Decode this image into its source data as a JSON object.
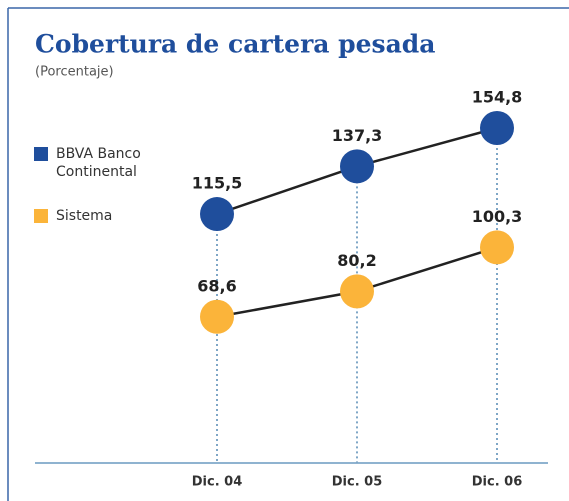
{
  "chart_data": {
    "type": "line",
    "title": "Cobertura de cartera pesada",
    "subtitle": "(Porcentaje)",
    "categories": [
      "Dic. 04",
      "Dic. 05",
      "Dic. 06"
    ],
    "series": [
      {
        "name": "BBVA Banco Continental",
        "color": "#1f4e9c",
        "values": [
          115.5,
          137.3,
          154.8
        ],
        "value_labels": [
          "115,5",
          "137,3",
          "154,8"
        ]
      },
      {
        "name": "Sistema",
        "color": "#fbb43a",
        "values": [
          68.6,
          80.2,
          100.3
        ],
        "value_labels": [
          "68,6",
          "80,2",
          "100,3"
        ]
      }
    ],
    "legend": "left"
  }
}
